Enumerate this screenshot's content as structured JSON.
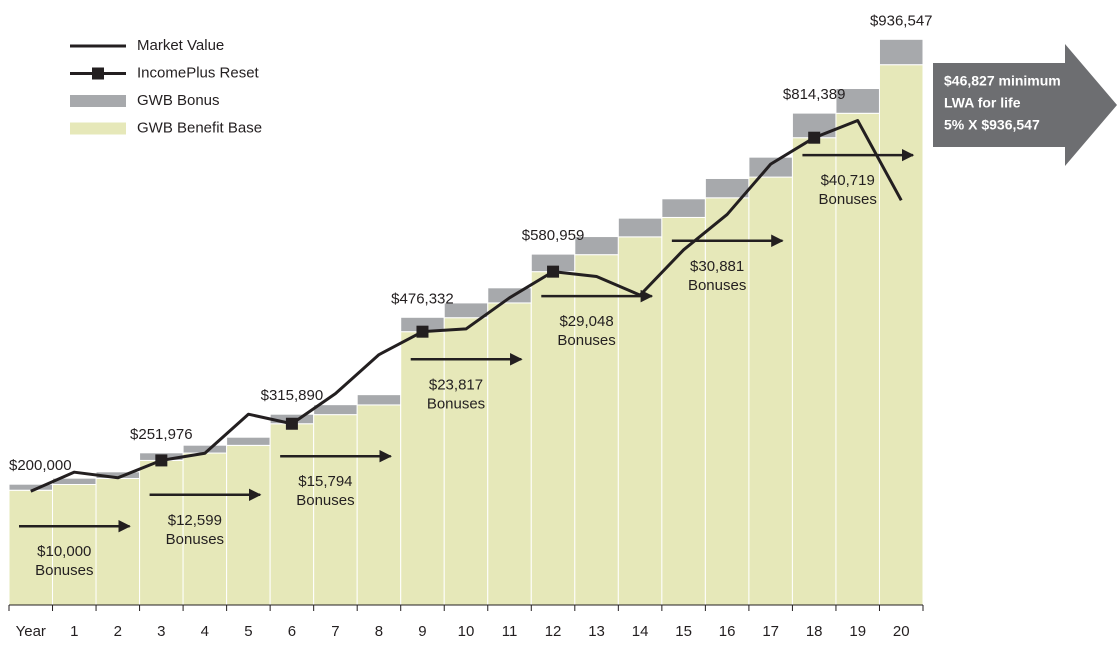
{
  "chart_data": {
    "type": "bar",
    "categories": [
      "Year",
      "1",
      "2",
      "3",
      "4",
      "5",
      "6",
      "7",
      "8",
      "9",
      "10",
      "11",
      "12",
      "13",
      "14",
      "15",
      "16",
      "17",
      "18",
      "19",
      "20"
    ],
    "series": [
      {
        "name": "Market Value",
        "type": "line",
        "color": "#231f20",
        "values": [
          188400,
          219900,
          210600,
          239377,
          251300,
          315900,
          300096,
          349900,
          414500,
          452515,
          457100,
          508600,
          551911,
          543800,
          513000,
          588100,
          646600,
          729900,
          773670,
          802100,
          670000
        ]
      },
      {
        "name": "IncomePlus Reset",
        "type": "marker",
        "color": "#231f20",
        "values": [
          null,
          null,
          null,
          239377,
          null,
          null,
          300096,
          null,
          null,
          452515,
          null,
          null,
          551911,
          null,
          null,
          null,
          null,
          null,
          773670,
          null,
          null
        ]
      },
      {
        "name": "GWB Bonus",
        "type": "bar",
        "color": "#a7a9ac",
        "values": [
          10000,
          10500,
          11000,
          12599,
          13000,
          13500,
          15794,
          16500,
          17000,
          23817,
          24500,
          25000,
          29048,
          30000,
          31000,
          30881,
          32000,
          33000,
          40719,
          41000,
          42000
        ]
      },
      {
        "name": "GWB Benefit Base",
        "type": "bar",
        "color": "#e6e8b9",
        "values": [
          190000,
          199500,
          209500,
          239377,
          251575,
          264304,
          300096,
          315185,
          331269,
          452515,
          475649,
          500156,
          551911,
          580007,
          609507,
          641651,
          674159,
          708467,
          773670,
          814108,
          894547
        ]
      }
    ],
    "ylim": [
      0,
      1000000
    ],
    "bar_labels": [
      {
        "category": "Year",
        "text": "$200,000"
      },
      {
        "category": "3",
        "text": "$251,976"
      },
      {
        "category": "6",
        "text": "$315,890"
      },
      {
        "category": "9",
        "text": "$476,332"
      },
      {
        "category": "12",
        "text": "$580,959"
      },
      {
        "category": "18",
        "text": "$814,389"
      },
      {
        "category": "20",
        "text": "$936,547"
      }
    ],
    "bonus_notes": [
      {
        "from": "Year",
        "to": "2",
        "text": [
          "$10,000",
          "Bonuses"
        ]
      },
      {
        "from": "3",
        "to": "5",
        "text": [
          "$12,599",
          "Bonuses"
        ]
      },
      {
        "from": "6",
        "to": "8",
        "text": [
          "$15,794",
          "Bonuses"
        ]
      },
      {
        "from": "9",
        "to": "11",
        "text": [
          "$23,817",
          "Bonuses"
        ]
      },
      {
        "from": "12",
        "to": "14",
        "text": [
          "$29,048",
          "Bonuses"
        ]
      },
      {
        "from": "15",
        "to": "17",
        "text": [
          "$30,881",
          "Bonuses"
        ]
      },
      {
        "from": "18",
        "to": "20",
        "text": [
          "$40,719",
          "Bonuses"
        ]
      }
    ],
    "callout": [
      "$46,827 minimum",
      "LWA for life",
      "5% X $936,547"
    ],
    "callout_color": "#6d6e71"
  }
}
